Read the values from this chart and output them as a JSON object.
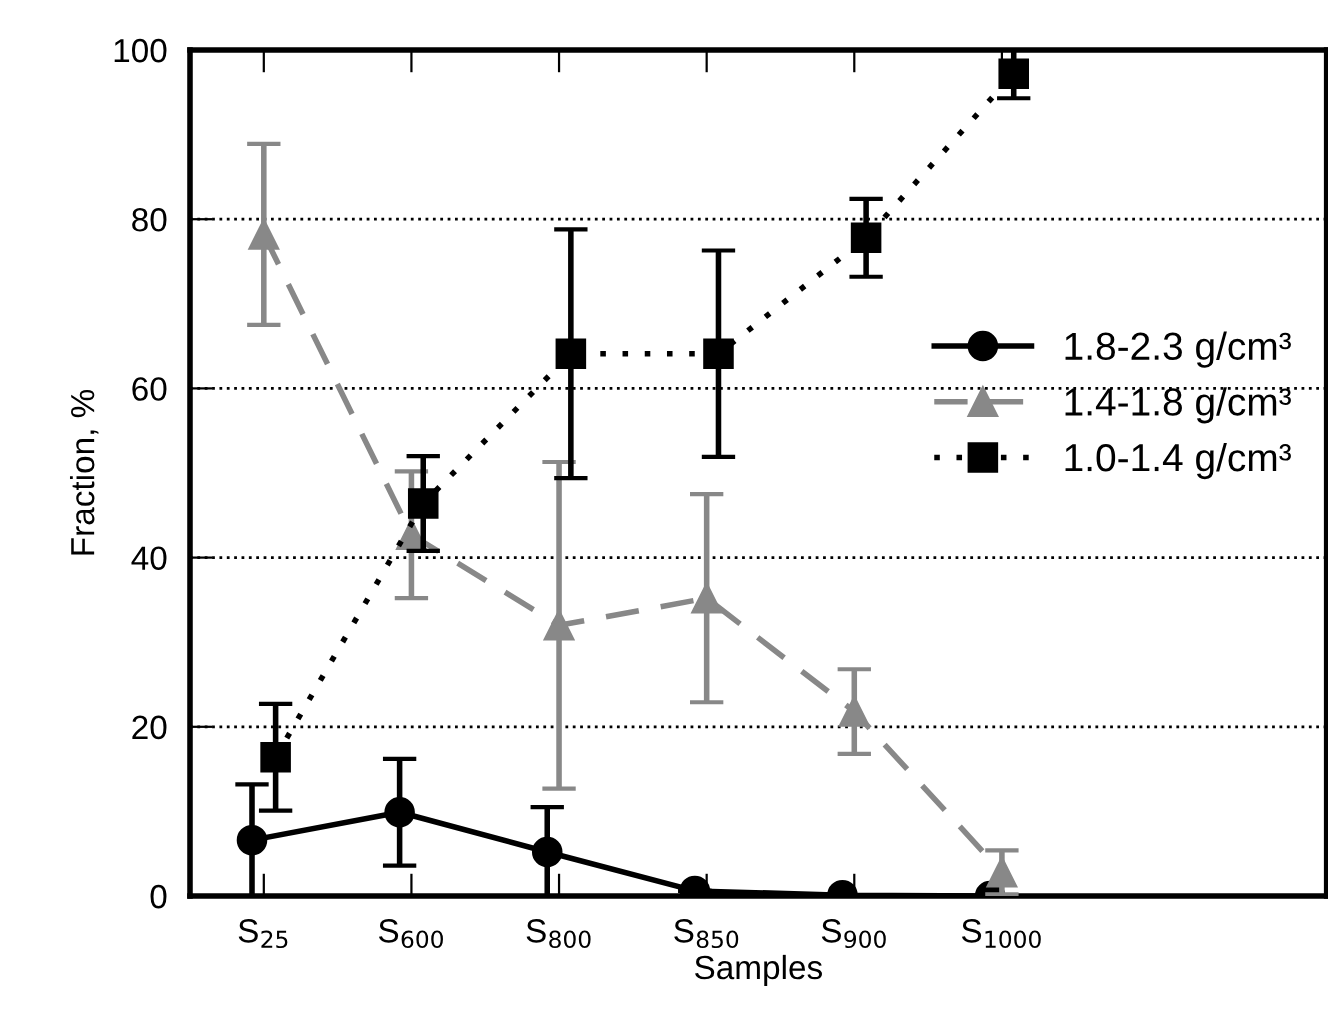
{
  "chart_data": {
    "type": "line",
    "xlabel": "Samples",
    "ylabel": "Fraction, %",
    "categories": [
      "S$_{25}$",
      "S$_{600}$",
      "S$_{800}$",
      "S$_{850}$",
      "S$_{900}$",
      "S$_{1000}$"
    ],
    "series": [
      {
        "name": "1.8-2.3 g/cm³",
        "color": "#000000",
        "marker": "circle",
        "line_style": "solid",
        "values": [
          6.6,
          9.9,
          5.2,
          0.6,
          0.1,
          0
        ],
        "errors": [
          6.6,
          6.3,
          5.3,
          null,
          null,
          null
        ]
      },
      {
        "name": "1.4-1.8 g/cm³",
        "color": "#888888",
        "marker": "triangle",
        "line_style": "dashed",
        "values": [
          78.2,
          42.7,
          32.0,
          35.2,
          21.8,
          2.8
        ],
        "errors": [
          10.7,
          7.5,
          19.3,
          12.3,
          5,
          2.6
        ]
      },
      {
        "name": "1.0-1.4 g/cm³",
        "color": "#000000",
        "marker": "square",
        "line_style": "dotted",
        "values": [
          16.4,
          46.4,
          64.1,
          64.1,
          77.8,
          97.2
        ],
        "errors": [
          6.3,
          5.6,
          14.7,
          12.2,
          4.6,
          2.9
        ]
      }
    ],
    "ylim": [
      0,
      100
    ],
    "yticks": [
      0,
      20,
      40,
      60,
      80,
      100
    ],
    "grid": "y",
    "legend": "right"
  }
}
